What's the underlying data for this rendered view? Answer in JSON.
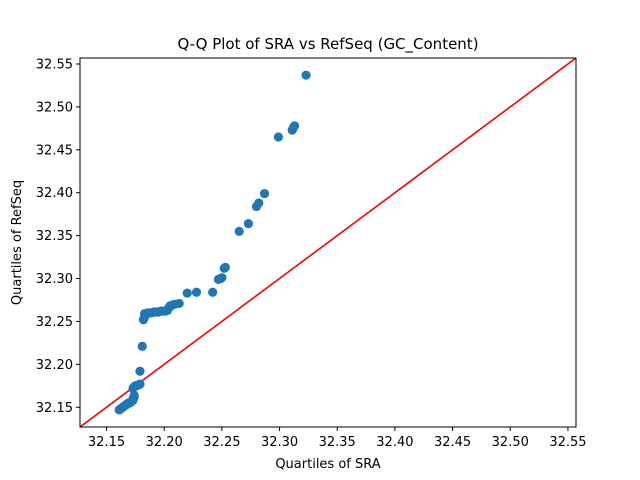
{
  "chart_data": {
    "type": "scatter",
    "title": "Q-Q Plot of SRA vs RefSeq (GC_Content)",
    "xlabel": "Quartiles of SRA",
    "ylabel": "Quartiles of RefSeq",
    "xlim": [
      32.127,
      32.557
    ],
    "ylim": [
      32.127,
      32.557
    ],
    "xticks": [
      "32.15",
      "32.20",
      "32.25",
      "32.30",
      "32.35",
      "32.40",
      "32.45",
      "32.50",
      "32.55"
    ],
    "yticks": [
      "32.15",
      "32.20",
      "32.25",
      "32.30",
      "32.35",
      "32.40",
      "32.45",
      "32.50",
      "32.55"
    ],
    "grid": false,
    "point_color": "#1f77b4",
    "reference_line": {
      "from": [
        32.127,
        32.127
      ],
      "to": [
        32.557,
        32.557
      ],
      "color": "#ff0000"
    },
    "series": [
      {
        "points": [
          [
            32.161,
            32.147
          ],
          [
            32.162,
            32.148
          ],
          [
            32.163,
            32.149
          ],
          [
            32.164,
            32.15
          ],
          [
            32.165,
            32.151
          ],
          [
            32.166,
            32.152
          ],
          [
            32.167,
            32.153
          ],
          [
            32.168,
            32.154
          ],
          [
            32.169,
            32.155
          ],
          [
            32.17,
            32.155
          ],
          [
            32.171,
            32.156
          ],
          [
            32.172,
            32.157
          ],
          [
            32.173,
            32.158
          ],
          [
            32.173,
            32.16
          ],
          [
            32.174,
            32.162
          ],
          [
            32.174,
            32.164
          ],
          [
            32.173,
            32.172
          ],
          [
            32.174,
            32.174
          ],
          [
            32.175,
            32.175
          ],
          [
            32.176,
            32.175
          ],
          [
            32.177,
            32.176
          ],
          [
            32.178,
            32.176
          ],
          [
            32.179,
            32.177
          ],
          [
            32.179,
            32.192
          ],
          [
            32.181,
            32.221
          ],
          [
            32.182,
            32.252
          ],
          [
            32.183,
            32.255
          ],
          [
            32.183,
            32.259
          ],
          [
            32.185,
            32.259
          ],
          [
            32.186,
            32.26
          ],
          [
            32.189,
            32.26
          ],
          [
            32.191,
            32.261
          ],
          [
            32.193,
            32.261
          ],
          [
            32.195,
            32.261
          ],
          [
            32.197,
            32.262
          ],
          [
            32.199,
            32.262
          ],
          [
            32.201,
            32.262
          ],
          [
            32.203,
            32.263
          ],
          [
            32.204,
            32.266
          ],
          [
            32.205,
            32.268
          ],
          [
            32.207,
            32.269
          ],
          [
            32.209,
            32.27
          ],
          [
            32.213,
            32.271
          ],
          [
            32.22,
            32.283
          ],
          [
            32.228,
            32.284
          ],
          [
            32.242,
            32.284
          ],
          [
            32.247,
            32.299
          ],
          [
            32.249,
            32.3
          ],
          [
            32.25,
            32.301
          ],
          [
            32.252,
            32.312
          ],
          [
            32.253,
            32.313
          ],
          [
            32.265,
            32.355
          ],
          [
            32.273,
            32.364
          ],
          [
            32.28,
            32.384
          ],
          [
            32.282,
            32.388
          ],
          [
            32.287,
            32.399
          ],
          [
            32.299,
            32.465
          ],
          [
            32.311,
            32.473
          ],
          [
            32.312,
            32.476
          ],
          [
            32.313,
            32.478
          ],
          [
            32.323,
            32.537
          ]
        ]
      }
    ]
  }
}
